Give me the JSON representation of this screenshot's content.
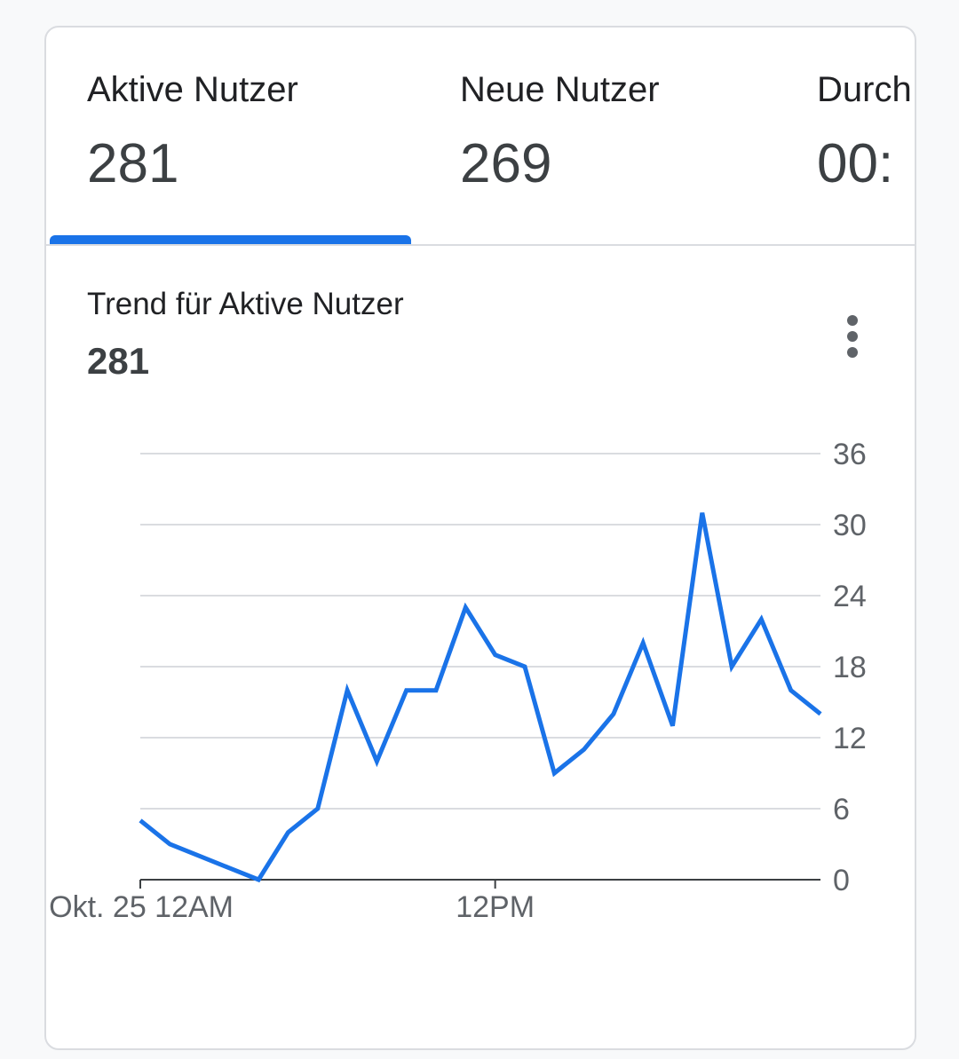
{
  "tabs": [
    {
      "label": "Aktive Nutzer",
      "value": "281",
      "selected": true
    },
    {
      "label": "Neue Nutzer",
      "value": "269",
      "selected": false
    },
    {
      "label": "Durch",
      "value": "00:",
      "selected": false
    }
  ],
  "trend": {
    "title": "Trend für Aktive Nutzer",
    "value": "281",
    "menu_icon": "more-vert-icon"
  },
  "colors": {
    "accent": "#1a73e8",
    "grid": "#dadce0",
    "axis": "#3c4043",
    "text": "#5f6368"
  },
  "chart_data": {
    "type": "line",
    "title": "",
    "xlabel": "",
    "ylabel": "",
    "ylim": [
      0,
      36
    ],
    "y_ticks": [
      "0",
      "6",
      "12",
      "18",
      "24",
      "30",
      "36"
    ],
    "y_axis_position": "right",
    "x_ticks": [
      {
        "label": "Okt. 25 12AM",
        "hour": 0
      },
      {
        "label": "12PM",
        "hour": 12
      }
    ],
    "grid": true,
    "series": [
      {
        "color": "#1a73e8",
        "x": [
          0,
          1,
          2,
          3,
          4,
          5,
          6,
          7,
          8,
          9,
          10,
          11,
          12,
          13,
          14,
          15,
          16,
          17,
          18,
          19,
          20,
          21,
          22,
          23
        ],
        "values": [
          5,
          3,
          2,
          1,
          0,
          4,
          6,
          16,
          10,
          16,
          16,
          23,
          19,
          18,
          9,
          11,
          14,
          20,
          13,
          31,
          18,
          22,
          16,
          14
        ]
      }
    ]
  }
}
